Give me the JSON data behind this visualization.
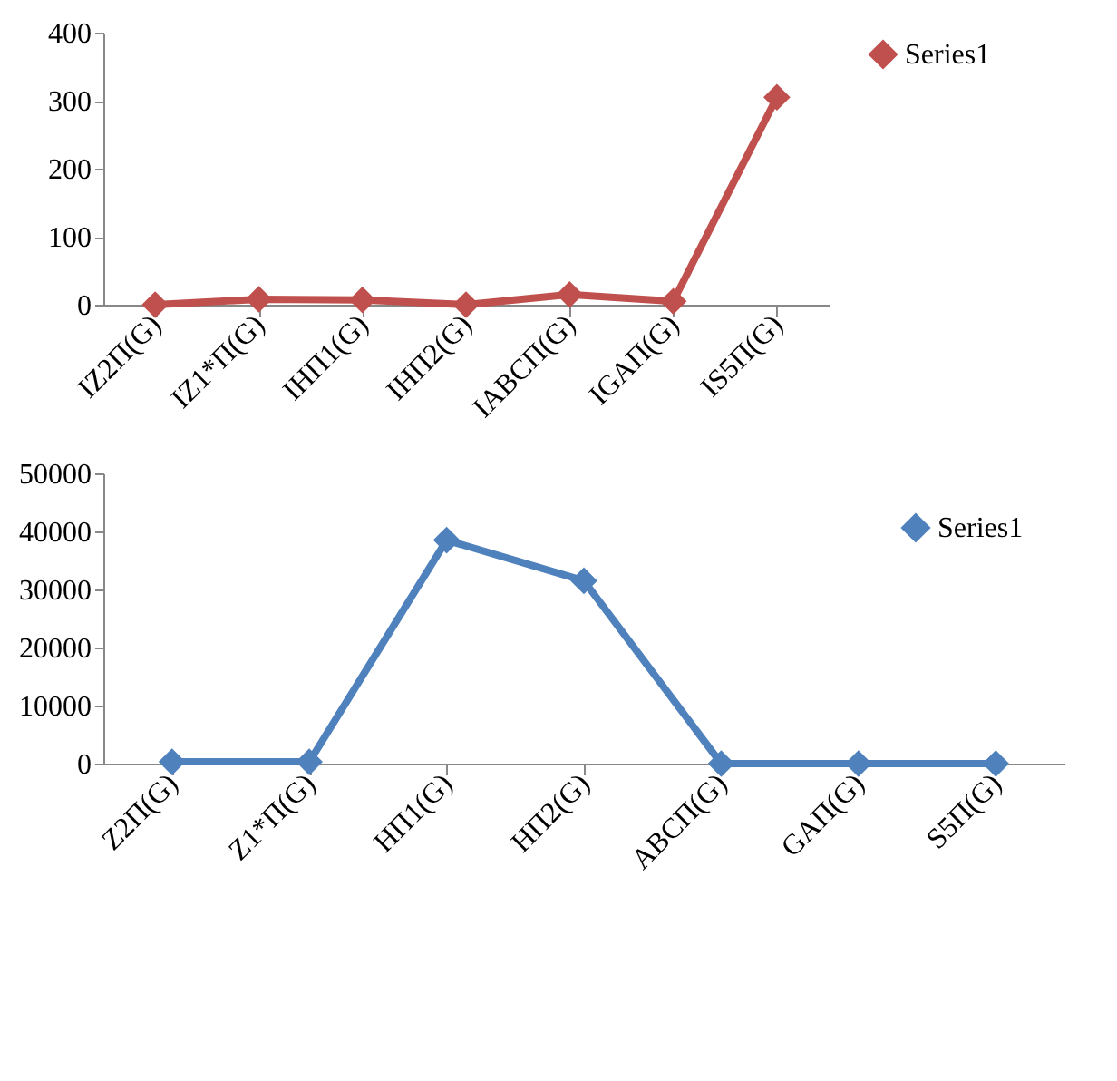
{
  "chart_data": [
    {
      "type": "line",
      "categories": [
        "IZ2Π(G)",
        "IZ1*Π(G)",
        "IHΠ1(G)",
        "IHΠ2(G)",
        "IABCΠ(G)",
        "IGAΠ(G)",
        "IS5Π(G)"
      ],
      "series": [
        {
          "name": "Series1",
          "color": "#c0504d",
          "values": [
            0,
            8,
            7,
            0,
            15,
            5,
            305
          ]
        }
      ],
      "ylim": [
        0,
        400
      ],
      "yticks": [
        0,
        100,
        200,
        300,
        400
      ],
      "grid": false,
      "legend": "right",
      "marker": "diamond",
      "line_style": "solid"
    },
    {
      "type": "line",
      "categories": [
        "Z2Π(G)",
        "Z1*Π(G)",
        "HΠ1(G)",
        "HΠ2(G)",
        "ABCΠ(G)",
        "GAΠ(G)",
        "S5Π(G)"
      ],
      "series": [
        {
          "name": "Series1",
          "color": "#4f81bd",
          "values": [
            300,
            300,
            38500,
            31500,
            0,
            0,
            0
          ]
        }
      ],
      "ylim": [
        0,
        50000
      ],
      "yticks": [
        0,
        10000,
        20000,
        30000,
        40000,
        50000
      ],
      "grid": false,
      "legend": "top right",
      "marker": "diamond",
      "line_style": "solid"
    }
  ]
}
